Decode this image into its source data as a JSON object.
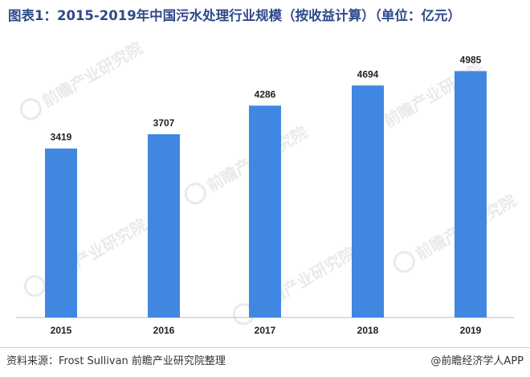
{
  "title": "图表1：2015-2019年中国污水处理行业规模（按收益计算）（单位：亿元）",
  "source": "资料来源：Frost Sullivan 前瞻产业研究院整理",
  "credit": "@前瞻经济学人APP",
  "watermark_text": "前瞻产业研究院",
  "colors": {
    "bar": "#3f87e0",
    "title": "#2f4a8a",
    "axis": "#bbbbbb"
  },
  "chart_data": {
    "type": "bar",
    "categories": [
      "2015",
      "2016",
      "2017",
      "2018",
      "2019"
    ],
    "values": [
      3419,
      3707,
      4286,
      4694,
      4985
    ],
    "title": "图表1：2015-2019年中国污水处理行业规模（按收益计算）（单位：亿元）",
    "xlabel": "",
    "ylabel": "",
    "ylim": [
      0,
      5500
    ],
    "grid": false,
    "data_labels": true
  }
}
